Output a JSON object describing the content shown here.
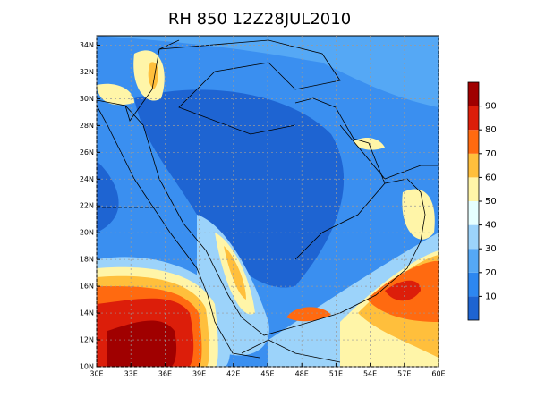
{
  "map": {
    "title": "RH 850  12Z28JUL2010",
    "lon_ticks": [
      {
        "value": 30,
        "label": "30E"
      },
      {
        "value": 33,
        "label": "33E"
      },
      {
        "value": 36,
        "label": "36E"
      },
      {
        "value": 39,
        "label": "39E"
      },
      {
        "value": 42,
        "label": "42E"
      },
      {
        "value": 45,
        "label": "45E"
      },
      {
        "value": 48,
        "label": "48E"
      },
      {
        "value": 51,
        "label": "51E"
      },
      {
        "value": 54,
        "label": "54E"
      },
      {
        "value": 57,
        "label": "57E"
      },
      {
        "value": 60,
        "label": "60E"
      }
    ],
    "lat_ticks": [
      {
        "value": 10,
        "label": "10N"
      },
      {
        "value": 12,
        "label": "12N"
      },
      {
        "value": 14,
        "label": "14N"
      },
      {
        "value": 16,
        "label": "16N"
      },
      {
        "value": 18,
        "label": "18N"
      },
      {
        "value": 20,
        "label": "20N"
      },
      {
        "value": 22,
        "label": "22N"
      },
      {
        "value": 24,
        "label": "24N"
      },
      {
        "value": 26,
        "label": "26N"
      },
      {
        "value": 28,
        "label": "28N"
      },
      {
        "value": 30,
        "label": "30N"
      },
      {
        "value": 32,
        "label": "32N"
      },
      {
        "value": 34,
        "label": "34N"
      }
    ],
    "lonlim": [
      30,
      60
    ],
    "latlim": [
      10,
      34.7
    ],
    "colorbar": {
      "levels": [
        10,
        20,
        30,
        40,
        50,
        60,
        70,
        80,
        90
      ],
      "colors": [
        "#1e64d2",
        "#2d87f0",
        "#55a8f5",
        "#9cd3fa",
        "#e6ffff",
        "#fff5a8",
        "#ffbf3c",
        "#ff6a10",
        "#dc1e0a",
        "#a00000"
      ]
    }
  }
}
